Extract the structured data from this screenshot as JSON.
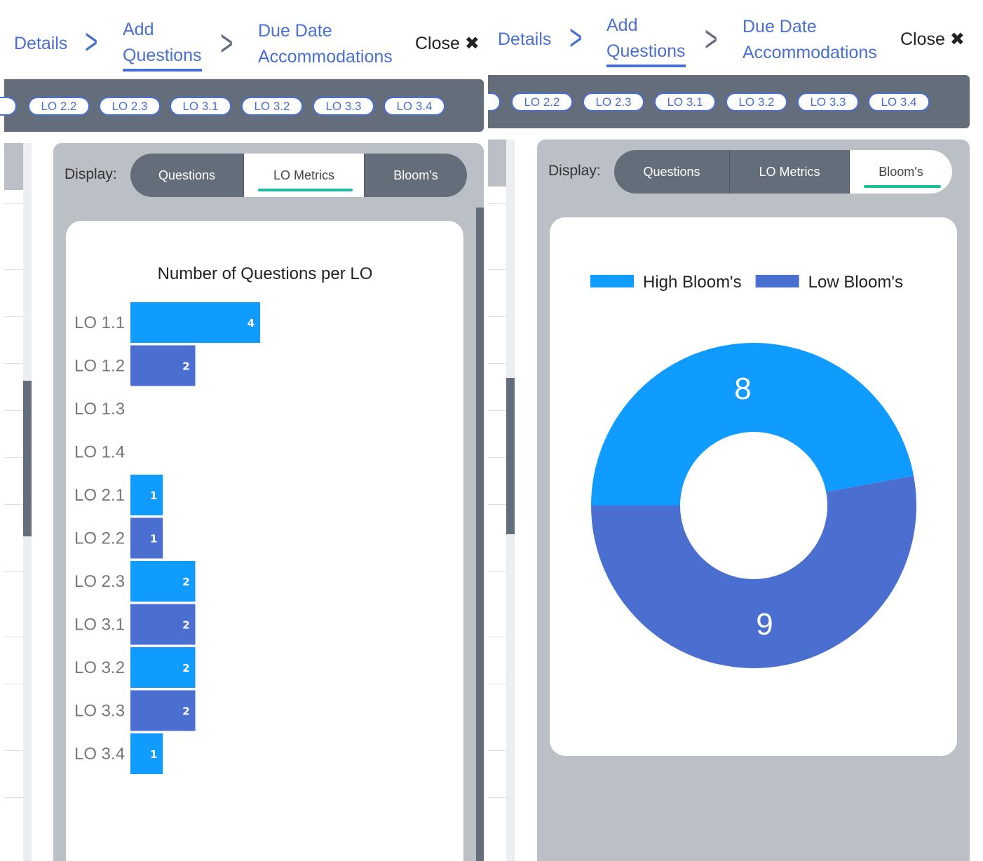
{
  "breadcrumb": {
    "details": "Details",
    "add_questions_line1": "Add",
    "add_questions_line2": "Questions",
    "due_date_line1": "Due Date",
    "due_date_line2": "Accommodations",
    "close": "Close",
    "close_icon": "✖"
  },
  "lo_pills": [
    "LO 2.2",
    "LO 2.3",
    "LO 3.1",
    "LO 3.2",
    "LO 3.3",
    "LO 3.4"
  ],
  "display": {
    "label": "Display:",
    "tabs": [
      "Questions",
      "LO Metrics",
      "Bloom's"
    ]
  },
  "colors": {
    "accent": "#4a6fd4",
    "high": "#0f9bff",
    "low": "#4b6fd0",
    "underline": "#18c0a0",
    "dark": "#646d7a"
  },
  "chart_data": [
    {
      "type": "bar",
      "orientation": "horizontal",
      "title": "Number of Questions per LO",
      "categories": [
        "LO 1.1",
        "LO 1.2",
        "LO 1.3",
        "LO 1.4",
        "LO 2.1",
        "LO 2.2",
        "LO 2.3",
        "LO 3.1",
        "LO 3.2",
        "LO 3.3",
        "LO 3.4"
      ],
      "values": [
        4,
        2,
        0,
        0,
        1,
        1,
        2,
        2,
        2,
        2,
        1
      ],
      "data_labels": [
        "4",
        "2",
        "",
        "",
        "1",
        "1",
        "2",
        "2",
        "2",
        "2",
        "1"
      ],
      "bar_colors": [
        "#0f9bff",
        "#4b6fd0"
      ]
    },
    {
      "type": "pie",
      "variant": "donut",
      "legend_placement": "top",
      "series": [
        {
          "name": "High Bloom's",
          "value": 8,
          "label": "8",
          "color": "#0f9bff"
        },
        {
          "name": "Low Bloom's",
          "value": 9,
          "label": "9",
          "color": "#4b6fd0"
        }
      ]
    }
  ]
}
